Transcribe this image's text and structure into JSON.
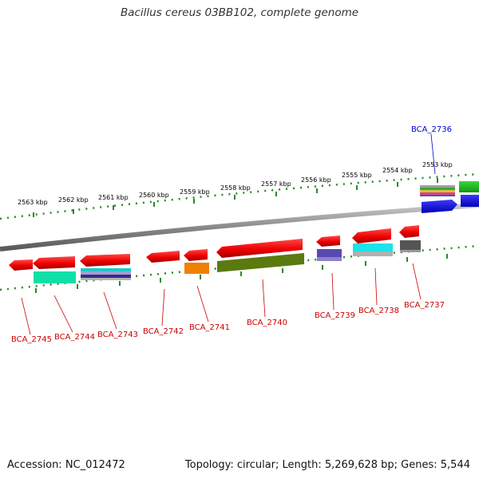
{
  "title": "Bacillus cereus 03BB102, complete genome",
  "footer": {
    "accession": "Accession: NC_012472",
    "summary": "Topology: circular; Length: 5,269,628 bp; Genes: 5,544"
  },
  "ruler": {
    "ticks": [
      "2553 kbp",
      "2554 kbp",
      "2555 kbp",
      "2556 kbp",
      "2557 kbp",
      "2558 kbp",
      "2559 kbp",
      "2560 kbp",
      "2561 kbp",
      "2562 kbp",
      "2563 kbp"
    ]
  },
  "genes": [
    {
      "id": "BCA_2736",
      "color": "#0000cc",
      "strand": "forward"
    },
    {
      "id": "BCA_2737",
      "color": "#cc0000",
      "strand": "reverse"
    },
    {
      "id": "BCA_2738",
      "color": "#cc0000",
      "strand": "reverse"
    },
    {
      "id": "BCA_2739",
      "color": "#cc0000",
      "strand": "reverse"
    },
    {
      "id": "BCA_2740",
      "color": "#cc0000",
      "strand": "reverse"
    },
    {
      "id": "BCA_2741",
      "color": "#cc0000",
      "strand": "reverse"
    },
    {
      "id": "BCA_2742",
      "color": "#cc0000",
      "strand": "reverse"
    },
    {
      "id": "BCA_2743",
      "color": "#cc0000",
      "strand": "reverse"
    },
    {
      "id": "BCA_2744",
      "color": "#cc0000",
      "strand": "reverse"
    },
    {
      "id": "BCA_2745",
      "color": "#cc0000",
      "strand": "reverse"
    }
  ],
  "colors": {
    "backbone": "#8a8a8a",
    "ruler": "#2a8a2a",
    "gene_arrow": "#ff0000",
    "forward_label": "#0000cc",
    "reverse_label": "#cc0000"
  }
}
